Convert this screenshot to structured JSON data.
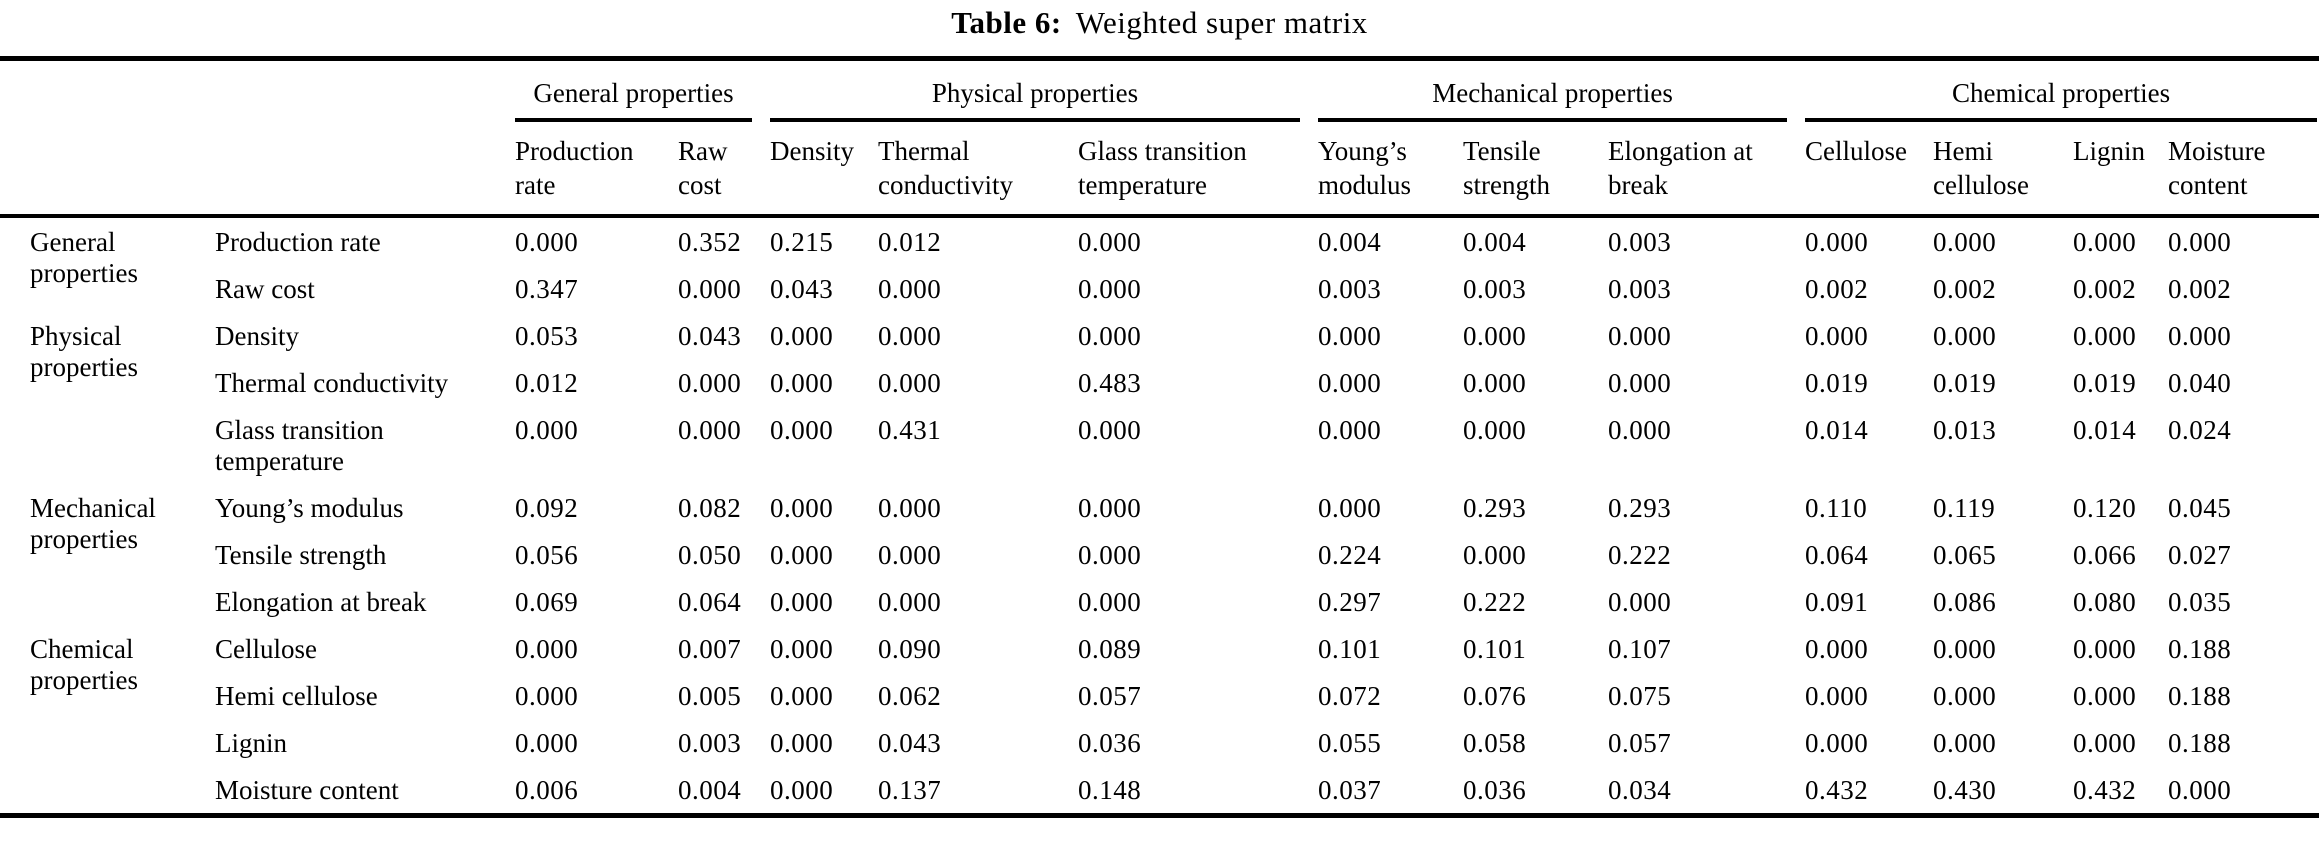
{
  "title": {
    "label": "Table 6:",
    "text": "Weighted super matrix"
  },
  "colors": {
    "background": "#ffffff",
    "text": "#000000",
    "rule": "#000000"
  },
  "table": {
    "column_groups": [
      {
        "label": "General properties",
        "span": 2
      },
      {
        "label": "Physical properties",
        "span": 3
      },
      {
        "label": "Mechanical properties",
        "span": 3
      },
      {
        "label": "Chemical properties",
        "span": 4
      }
    ],
    "columns": [
      "Production rate",
      "Raw cost",
      "Density",
      "Thermal conductivity",
      "Glass transition temperature",
      "Young’s modulus",
      "Tensile strength",
      "Elongation at break",
      "Cellulose",
      "Hemi cellulose",
      "Lignin",
      "Moisture content"
    ],
    "row_groups": [
      {
        "label": "General properties",
        "rows": [
          {
            "label": "Production rate",
            "values": [
              "0.000",
              "0.352",
              "0.215",
              "0.012",
              "0.000",
              "0.004",
              "0.004",
              "0.003",
              "0.000",
              "0.000",
              "0.000",
              "0.000"
            ]
          },
          {
            "label": "Raw cost",
            "values": [
              "0.347",
              "0.000",
              "0.043",
              "0.000",
              "0.000",
              "0.003",
              "0.003",
              "0.003",
              "0.002",
              "0.002",
              "0.002",
              "0.002"
            ]
          }
        ]
      },
      {
        "label": "Physical properties",
        "rows": [
          {
            "label": "Density",
            "values": [
              "0.053",
              "0.043",
              "0.000",
              "0.000",
              "0.000",
              "0.000",
              "0.000",
              "0.000",
              "0.000",
              "0.000",
              "0.000",
              "0.000"
            ]
          },
          {
            "label": "Thermal conductivity",
            "values": [
              "0.012",
              "0.000",
              "0.000",
              "0.000",
              "0.483",
              "0.000",
              "0.000",
              "0.000",
              "0.019",
              "0.019",
              "0.019",
              "0.040"
            ]
          },
          {
            "label": "Glass transition temperature",
            "values": [
              "0.000",
              "0.000",
              "0.000",
              "0.431",
              "0.000",
              "0.000",
              "0.000",
              "0.000",
              "0.014",
              "0.013",
              "0.014",
              "0.024"
            ]
          }
        ]
      },
      {
        "label": "Mechanical properties",
        "rows": [
          {
            "label": "Young’s modulus",
            "values": [
              "0.092",
              "0.082",
              "0.000",
              "0.000",
              "0.000",
              "0.000",
              "0.293",
              "0.293",
              "0.110",
              "0.119",
              "0.120",
              "0.045"
            ]
          },
          {
            "label": "Tensile strength",
            "values": [
              "0.056",
              "0.050",
              "0.000",
              "0.000",
              "0.000",
              "0.224",
              "0.000",
              "0.222",
              "0.064",
              "0.065",
              "0.066",
              "0.027"
            ]
          },
          {
            "label": "Elongation at break",
            "values": [
              "0.069",
              "0.064",
              "0.000",
              "0.000",
              "0.000",
              "0.297",
              "0.222",
              "0.000",
              "0.091",
              "0.086",
              "0.080",
              "0.035"
            ]
          }
        ]
      },
      {
        "label": "Chemical properties",
        "rows": [
          {
            "label": "Cellulose",
            "values": [
              "0.000",
              "0.007",
              "0.000",
              "0.090",
              "0.089",
              "0.101",
              "0.101",
              "0.107",
              "0.000",
              "0.000",
              "0.000",
              "0.188"
            ]
          },
          {
            "label": "Hemi cellulose",
            "values": [
              "0.000",
              "0.005",
              "0.000",
              "0.062",
              "0.057",
              "0.072",
              "0.076",
              "0.075",
              "0.000",
              "0.000",
              "0.000",
              "0.188"
            ]
          },
          {
            "label": "Lignin",
            "values": [
              "0.000",
              "0.003",
              "0.000",
              "0.043",
              "0.036",
              "0.055",
              "0.058",
              "0.057",
              "0.000",
              "0.000",
              "0.000",
              "0.188"
            ]
          },
          {
            "label": "Moisture content",
            "values": [
              "0.006",
              "0.004",
              "0.000",
              "0.137",
              "0.148",
              "0.037",
              "0.036",
              "0.034",
              "0.432",
              "0.430",
              "0.432",
              "0.000"
            ]
          }
        ]
      }
    ]
  }
}
